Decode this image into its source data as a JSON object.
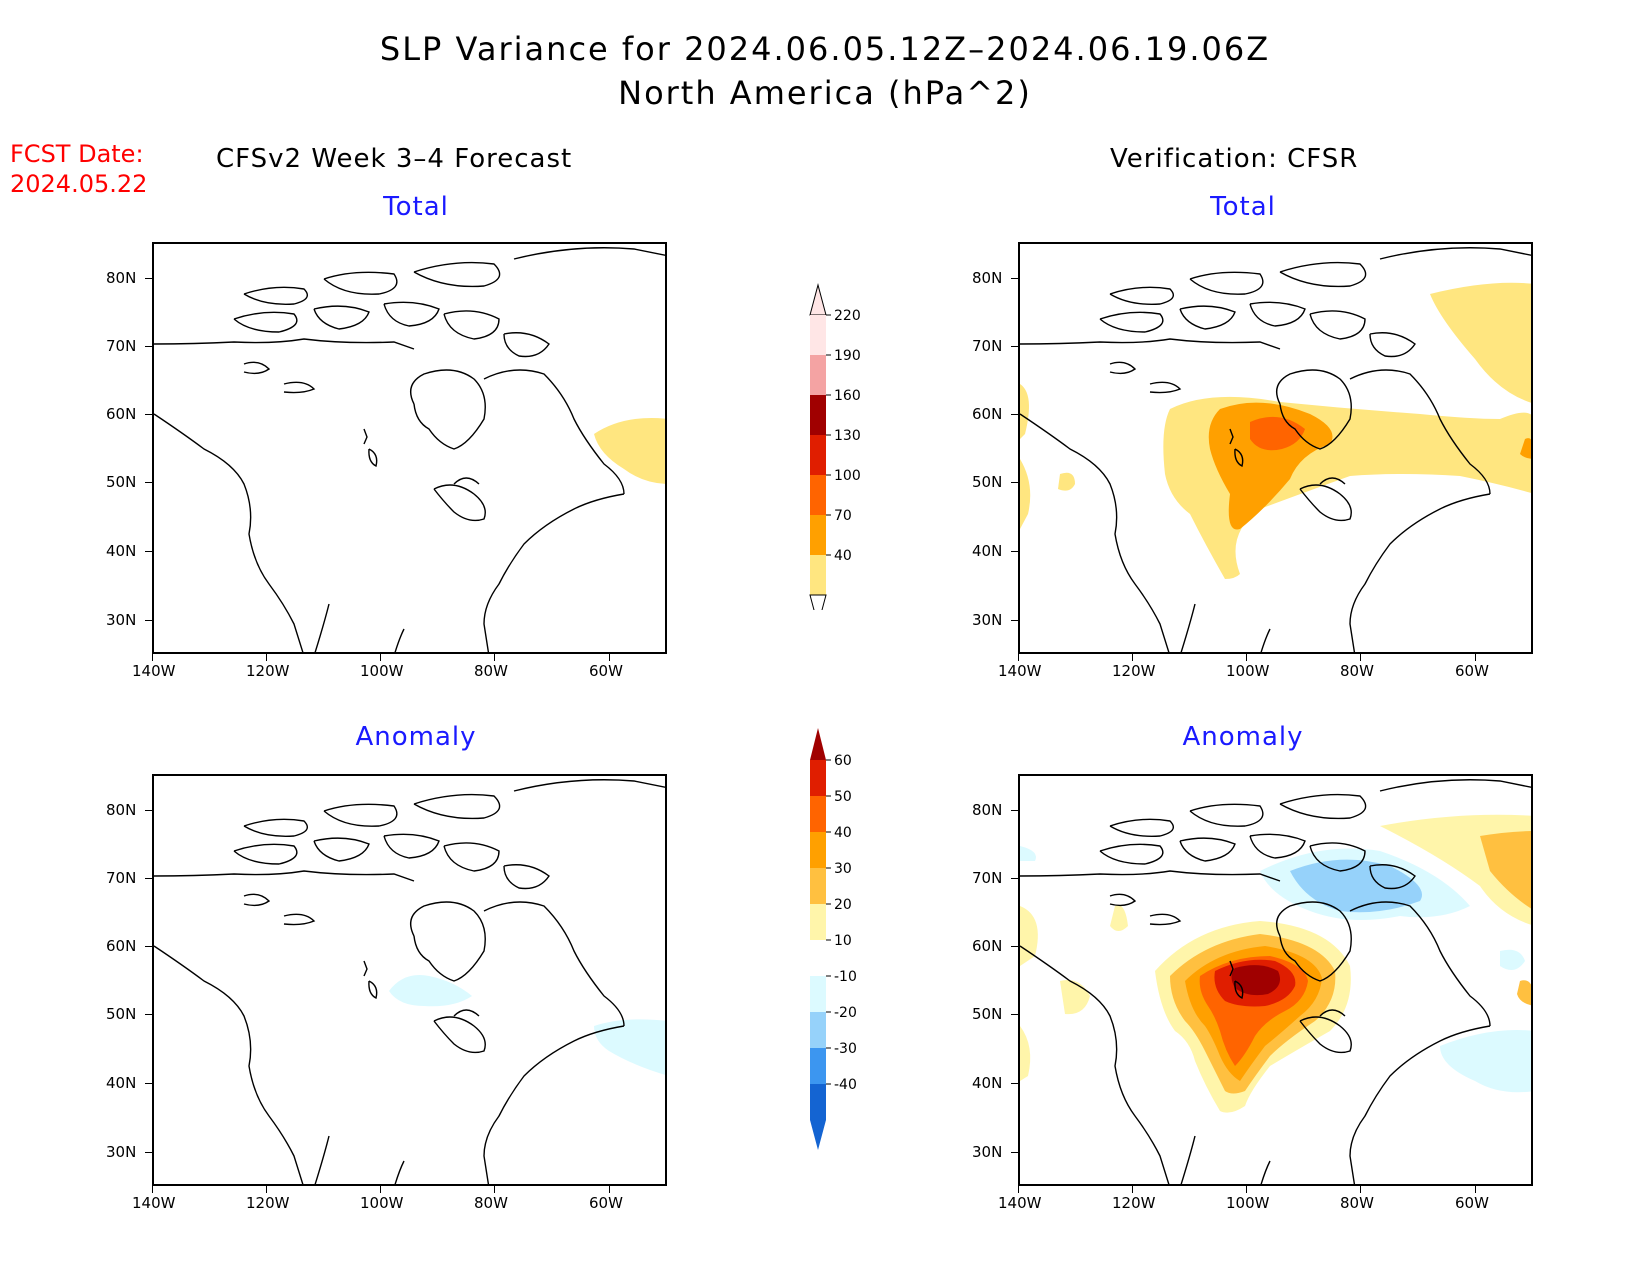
{
  "header": {
    "title_line1": "SLP Variance for 2024.06.05.12Z–2024.06.19.06Z",
    "title_line2": "North America (hPa^2)"
  },
  "fcst": {
    "label": "FCST Date:",
    "date": "2024.05.22"
  },
  "columns": {
    "left": "CFSv2 Week 3–4 Forecast",
    "right": "Verification: CFSR"
  },
  "panels": {
    "fc_total": "Total",
    "ver_total": "Total",
    "fc_anom": "Anomaly",
    "ver_anom": "Anomaly"
  },
  "axes": {
    "lat": [
      "80N",
      "70N",
      "60N",
      "50N",
      "40N",
      "30N"
    ],
    "lon": [
      "140W",
      "120W",
      "100W",
      "80W",
      "60W"
    ]
  },
  "colorbar_total": {
    "levels": [
      "220",
      "190",
      "160",
      "130",
      "100",
      "70",
      "40"
    ],
    "colors": [
      "#ffe6e6",
      "#f4a3a3",
      "#a00000",
      "#e01e00",
      "#ff6400",
      "#ffa000",
      "#ffe680"
    ]
  },
  "colorbar_anom": {
    "levels": [
      "60",
      "50",
      "40",
      "30",
      "20",
      "10",
      "-10",
      "-20",
      "-30",
      "-40"
    ],
    "colors": [
      "#a00000",
      "#e01e00",
      "#ff6400",
      "#ffa000",
      "#ffc040",
      "#fff5aa",
      "#ffffff",
      "#dcfaff",
      "#96d2fa",
      "#3c96f0",
      "#1464d2"
    ]
  }
}
